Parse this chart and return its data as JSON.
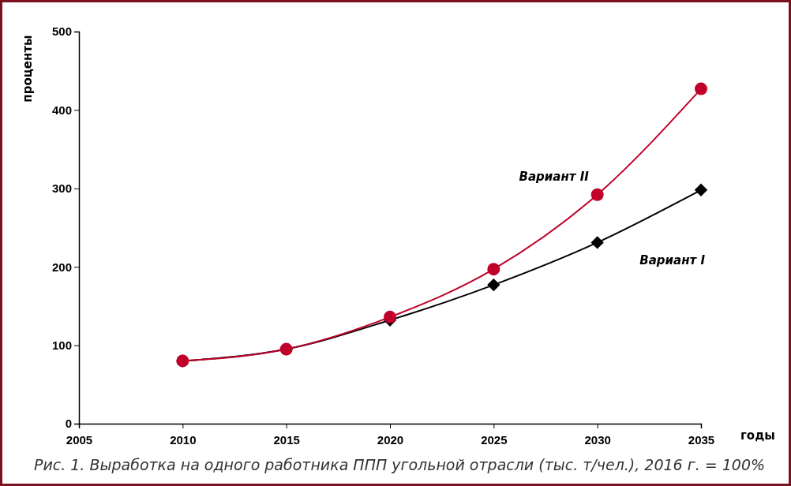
{
  "chart_data": {
    "type": "line",
    "xlabel": "годы",
    "ylabel": "проценты",
    "x": [
      2010,
      2015,
      2020,
      2025,
      2030,
      2035
    ],
    "series": [
      {
        "name": "Вариант I",
        "color": "#000000",
        "marker": "diamond",
        "values": [
          80,
          95,
          132,
          177,
          231,
          298
        ]
      },
      {
        "name": "Вариант II",
        "color": "#c0002a",
        "marker": "circle",
        "values": [
          80,
          95,
          136,
          197,
          292,
          427
        ]
      }
    ],
    "xlim": [
      2005,
      2035
    ],
    "xticks": [
      2005,
      2010,
      2015,
      2020,
      2025,
      2030,
      2035
    ],
    "ylim": [
      0,
      500
    ],
    "yticks": [
      0,
      100,
      200,
      300,
      400,
      500
    ],
    "grid": false,
    "legend": false,
    "annotations": [
      "Рис. 1. Выработка на одного работника ППП угольной отрасли (тыс. т/чел.), 2016 г. = 100%"
    ]
  }
}
